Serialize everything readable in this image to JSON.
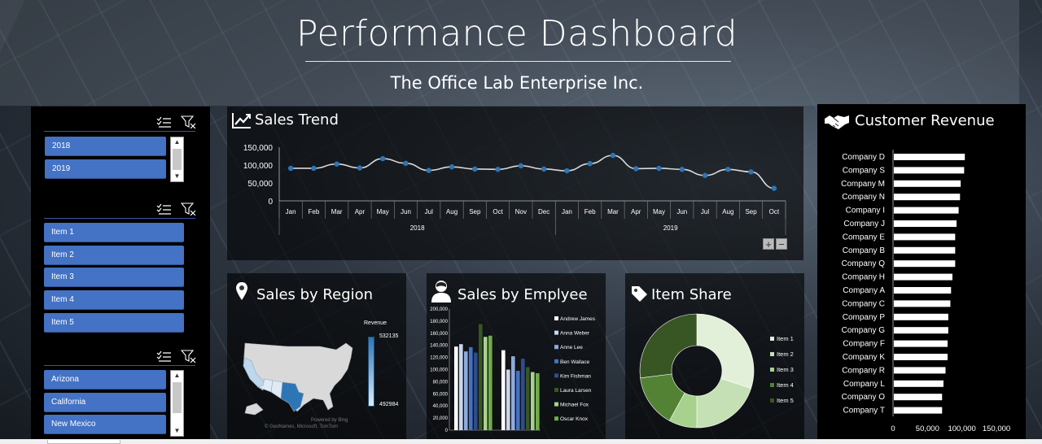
{
  "header": {
    "title": "Performance Dashboard",
    "subtitle": "The Office Lab Enterprise Inc."
  },
  "slicers": {
    "years": [
      "2018",
      "2019"
    ],
    "items": [
      "Item 1",
      "Item 2",
      "Item 3",
      "Item 4",
      "Item 5"
    ],
    "states": [
      "Arizona",
      "California",
      "New Mexico"
    ]
  },
  "icons": {
    "multi_select": "multi-select-icon",
    "clear_filter": "clear-filter-icon",
    "trend": "trend-line-icon",
    "location": "location-pin-icon",
    "employee": "employee-icon",
    "tag": "tag-icon",
    "handshake": "handshake-icon"
  },
  "colors": {
    "slicer_button": "#4472c4",
    "line": "#2e75b6",
    "bar": "#ffffff"
  },
  "sales_trend": {
    "title": "Sales Trend",
    "zoom_in": "+",
    "zoom_out": "−",
    "chart_data": {
      "type": "line",
      "months": [
        "Jan",
        "Feb",
        "Mar",
        "Apr",
        "May",
        "Jun",
        "Jul",
        "Aug",
        "Sep",
        "Oct",
        "Nov",
        "Dec",
        "Jan",
        "Feb",
        "Mar",
        "Apr",
        "May",
        "Jun",
        "Jul",
        "Aug",
        "Sep",
        "Oct"
      ],
      "years": [
        {
          "label": "2018",
          "count": 12
        },
        {
          "label": "2019",
          "count": 10
        }
      ],
      "values": [
        91000,
        91000,
        103000,
        92000,
        118000,
        105000,
        85000,
        95000,
        89000,
        88000,
        98000,
        89000,
        84000,
        104000,
        127000,
        90000,
        91000,
        88000,
        71000,
        88000,
        81000,
        35000
      ],
      "yticks": [
        "150,000",
        "100,000",
        "50,000",
        "0"
      ],
      "ylim": [
        0,
        150000
      ]
    }
  },
  "region": {
    "title": "Sales by Region",
    "legend_title": "Revenue",
    "max_label": "532135",
    "min_label": "492984",
    "credits": [
      "Powered by Bing",
      "© GeoNames, Microsoft, TomTom"
    ]
  },
  "employee": {
    "title": "Sales by Emplyee",
    "chart_data": {
      "type": "bar",
      "yticks": [
        "200,000",
        "180,000",
        "160,000",
        "140,000",
        "120,000",
        "100,000",
        "80,000",
        "60,000",
        "40,000",
        "20,000",
        "0"
      ],
      "ylim": [
        0,
        200000
      ],
      "series": [
        {
          "name": "Andrew James",
          "color": "#ffffff",
          "values": [
            138000,
            132000
          ]
        },
        {
          "name": "Anna Weber",
          "color": "#c9d6ef",
          "values": [
            142000,
            100000
          ]
        },
        {
          "name": "Anne Lee",
          "color": "#8faadc",
          "values": [
            130000,
            122000
          ]
        },
        {
          "name": "Ben Wallace",
          "color": "#4472c4",
          "values": [
            137000,
            98000
          ]
        },
        {
          "name": "Kim Fishman",
          "color": "#2f4d8c",
          "values": [
            128000,
            118000
          ]
        },
        {
          "name": "Laura Larsen",
          "color": "#375623",
          "values": [
            175000,
            104000
          ]
        },
        {
          "name": "Michael Fox",
          "color": "#a9d18e",
          "values": [
            154000,
            96000
          ]
        },
        {
          "name": "Oscar Knox",
          "color": "#70ad47",
          "values": [
            156000,
            94000
          ]
        }
      ]
    }
  },
  "share": {
    "title": "Item Share",
    "chart_data": {
      "type": "pie",
      "labels": [
        "Item 1",
        "Item 2",
        "Item 3",
        "Item 4",
        "Item 5"
      ],
      "values": [
        30,
        20,
        8,
        15,
        27
      ],
      "colors": [
        "#e2f0d9",
        "#c5e0b4",
        "#a9d18e",
        "#548235",
        "#375623"
      ]
    }
  },
  "customer_revenue": {
    "title": "Customer Revenue",
    "chart_data": {
      "type": "bar",
      "orientation": "horizontal",
      "categories": [
        "Company D",
        "Company S",
        "Company M",
        "Company N",
        "Company I",
        "Company J",
        "Company E",
        "Company B",
        "Company Q",
        "Company H",
        "Company A",
        "Company C",
        "Company P",
        "Company G",
        "Company F",
        "Company K",
        "Company R",
        "Company L",
        "Company O",
        "Company T"
      ],
      "values": [
        103000,
        102000,
        97000,
        96000,
        94000,
        91000,
        89000,
        89000,
        89000,
        85000,
        83000,
        82000,
        79000,
        79000,
        78000,
        78000,
        75000,
        72000,
        70000,
        70000
      ],
      "xticks": [
        "0",
        "50,000",
        "100,000",
        "150,000"
      ],
      "xlim": [
        0,
        150000
      ]
    }
  }
}
